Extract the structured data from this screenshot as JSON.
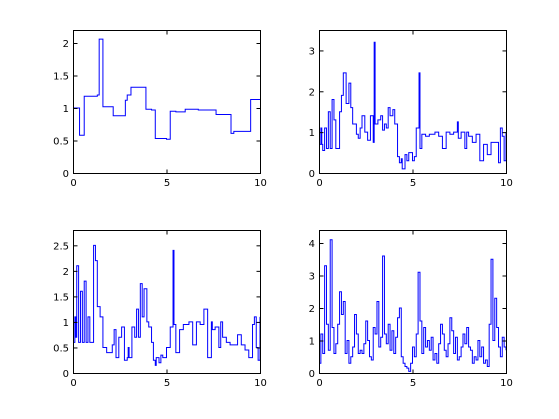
{
  "chart_data": [
    {
      "type": "line",
      "style": "step",
      "title": "",
      "xlabel": "",
      "ylabel": "",
      "xlim": [
        0,
        10
      ],
      "ylim": [
        0,
        2.2
      ],
      "xticks": [
        0,
        5,
        10
      ],
      "yticks": [
        0,
        0.5,
        1,
        1.5,
        2
      ],
      "xtick_labels": [
        "0",
        "5",
        "10"
      ],
      "ytick_labels": [
        "0",
        "0.5",
        "1",
        "1.5",
        "2"
      ],
      "grid": false,
      "color": "#0000ff",
      "x": [
        0,
        0.35,
        0.6,
        1.3,
        1.4,
        1.6,
        2.15,
        2.8,
        2.9,
        3.1,
        3.3,
        3.9,
        4.2,
        4.4,
        5.0,
        5.2,
        5.5,
        6.0,
        6.7,
        7.3,
        7.65,
        8.45,
        8.6,
        9.35,
        9.5,
        10.0
      ],
      "y": [
        1.0,
        0.58,
        1.18,
        1.2,
        2.06,
        1.02,
        0.88,
        1.12,
        1.2,
        1.32,
        1.32,
        0.98,
        0.97,
        0.53,
        0.52,
        0.95,
        0.94,
        0.98,
        0.97,
        0.97,
        0.9,
        0.61,
        0.64,
        0.64,
        1.13,
        1.13
      ]
    },
    {
      "type": "line",
      "style": "step",
      "title": "",
      "xlabel": "",
      "ylabel": "",
      "xlim": [
        0,
        10
      ],
      "ylim": [
        0,
        3.5
      ],
      "xticks": [
        0,
        5,
        10
      ],
      "yticks": [
        0,
        1,
        2,
        3
      ],
      "xtick_labels": [
        "0",
        "5",
        "10"
      ],
      "ytick_labels": [
        "0",
        "1",
        "2",
        "3"
      ],
      "grid": false,
      "color": "#0000ff",
      "x": [
        0,
        0.1,
        0.15,
        0.2,
        0.3,
        0.4,
        0.5,
        0.6,
        0.7,
        0.8,
        0.9,
        1.1,
        1.2,
        1.3,
        1.45,
        1.6,
        1.7,
        1.8,
        2.0,
        2.1,
        2.2,
        2.3,
        2.45,
        2.6,
        2.75,
        2.9,
        2.95,
        3.0,
        3.15,
        3.3,
        3.4,
        3.5,
        3.6,
        3.7,
        3.8,
        3.95,
        4.05,
        4.2,
        4.3,
        4.4,
        4.45,
        4.6,
        4.7,
        4.8,
        5.0,
        5.1,
        5.2,
        5.35,
        5.4,
        5.5,
        5.7,
        5.9,
        6.2,
        6.4,
        6.6,
        6.8,
        7.0,
        7.2,
        7.4,
        7.45,
        7.6,
        7.8,
        7.9,
        8.0,
        8.2,
        8.4,
        8.6,
        8.8,
        9.0,
        9.2,
        9.4,
        9.6,
        9.7,
        9.8,
        9.9,
        10.0
      ],
      "y": [
        0.7,
        1.1,
        0.7,
        0.55,
        1.1,
        0.6,
        1.5,
        0.6,
        1.8,
        1.3,
        0.6,
        1.5,
        1.9,
        2.45,
        1.7,
        2.2,
        1.6,
        1.2,
        0.95,
        0.85,
        1.1,
        1.4,
        1.0,
        0.8,
        1.4,
        0.75,
        3.2,
        1.2,
        1.3,
        1.4,
        1.05,
        1.2,
        1.1,
        1.6,
        1.4,
        1.55,
        1.2,
        0.4,
        0.25,
        0.35,
        0.1,
        0.45,
        0.3,
        0.5,
        0.3,
        0.4,
        1.1,
        2.45,
        0.6,
        0.95,
        0.9,
        0.95,
        1.0,
        0.9,
        0.6,
        1.0,
        0.95,
        1.0,
        1.25,
        0.85,
        1.0,
        0.6,
        1.0,
        0.9,
        0.75,
        0.95,
        0.3,
        0.7,
        0.45,
        0.75,
        0.75,
        0.25,
        1.1,
        0.9,
        0.3,
        1.0
      ]
    },
    {
      "type": "line",
      "style": "step",
      "title": "",
      "xlabel": "",
      "ylabel": "",
      "xlim": [
        0,
        10
      ],
      "ylim": [
        0,
        2.8
      ],
      "xticks": [
        0,
        5,
        10
      ],
      "yticks": [
        0,
        0.5,
        1,
        1.5,
        2,
        2.5
      ],
      "xtick_labels": [
        "0",
        "5",
        "10"
      ],
      "ytick_labels": [
        "0",
        "0.5",
        "1",
        "1.5",
        "2",
        "2.5"
      ],
      "grid": false,
      "color": "#0000ff",
      "x": [
        0,
        0.1,
        0.15,
        0.2,
        0.3,
        0.4,
        0.5,
        0.6,
        0.7,
        0.8,
        0.9,
        1.1,
        1.2,
        1.3,
        1.45,
        1.6,
        1.7,
        1.8,
        2.0,
        2.1,
        2.2,
        2.3,
        2.45,
        2.6,
        2.75,
        2.9,
        2.95,
        3.0,
        3.15,
        3.3,
        3.4,
        3.5,
        3.6,
        3.7,
        3.8,
        3.95,
        4.05,
        4.2,
        4.3,
        4.4,
        4.45,
        4.6,
        4.7,
        4.8,
        5.0,
        5.1,
        5.2,
        5.35,
        5.4,
        5.5,
        5.7,
        5.9,
        6.2,
        6.4,
        6.6,
        6.8,
        7.0,
        7.2,
        7.4,
        7.45,
        7.6,
        7.8,
        7.9,
        8.0,
        8.2,
        8.4,
        8.6,
        8.8,
        9.0,
        9.2,
        9.4,
        9.6,
        9.7,
        9.8,
        9.9,
        10.0
      ],
      "y": [
        0.6,
        1.1,
        0.7,
        2.1,
        0.6,
        1.6,
        0.6,
        1.8,
        0.6,
        1.1,
        0.6,
        2.5,
        2.2,
        1.3,
        1.1,
        0.5,
        0.5,
        0.4,
        0.4,
        0.55,
        0.85,
        0.3,
        0.7,
        0.9,
        0.25,
        0.3,
        0.5,
        0.3,
        0.9,
        0.7,
        1.25,
        0.7,
        1.75,
        1.1,
        1.65,
        1.0,
        0.9,
        0.6,
        0.25,
        0.15,
        0.3,
        0.2,
        0.35,
        0.3,
        0.5,
        0.5,
        0.9,
        2.4,
        0.95,
        0.4,
        0.85,
        0.95,
        1.0,
        0.55,
        1.0,
        0.95,
        1.25,
        0.3,
        1.0,
        0.85,
        0.9,
        0.5,
        1.0,
        0.7,
        0.6,
        0.55,
        0.55,
        0.75,
        0.55,
        0.45,
        0.3,
        0.95,
        1.1,
        0.5,
        0.25,
        1.1
      ]
    },
    {
      "type": "line",
      "style": "step",
      "title": "",
      "xlabel": "",
      "ylabel": "",
      "xlim": [
        0,
        10
      ],
      "ylim": [
        0,
        4.4
      ],
      "xticks": [
        0,
        5,
        10
      ],
      "yticks": [
        0,
        1,
        2,
        3,
        4
      ],
      "xtick_labels": [
        "0",
        "5",
        "10"
      ],
      "ytick_labels": [
        "0",
        "1",
        "2",
        "3",
        "4"
      ],
      "grid": false,
      "color": "#0000ff",
      "x": [
        0,
        0.1,
        0.2,
        0.3,
        0.4,
        0.5,
        0.6,
        0.7,
        0.8,
        0.9,
        1.0,
        1.1,
        1.2,
        1.3,
        1.4,
        1.5,
        1.6,
        1.7,
        1.8,
        1.9,
        2.0,
        2.1,
        2.2,
        2.3,
        2.4,
        2.5,
        2.6,
        2.7,
        2.8,
        2.9,
        3.0,
        3.1,
        3.2,
        3.3,
        3.4,
        3.5,
        3.6,
        3.7,
        3.8,
        3.9,
        4.0,
        4.1,
        4.2,
        4.3,
        4.4,
        4.5,
        4.6,
        4.7,
        4.8,
        4.9,
        5.0,
        5.1,
        5.2,
        5.3,
        5.4,
        5.5,
        5.6,
        5.7,
        5.8,
        5.9,
        6.0,
        6.1,
        6.2,
        6.3,
        6.4,
        6.5,
        6.6,
        6.7,
        6.8,
        6.9,
        7.0,
        7.1,
        7.2,
        7.3,
        7.4,
        7.5,
        7.6,
        7.7,
        7.8,
        7.9,
        8.0,
        8.1,
        8.2,
        8.3,
        8.4,
        8.5,
        8.6,
        8.7,
        8.8,
        8.9,
        9.0,
        9.1,
        9.2,
        9.3,
        9.4,
        9.5,
        9.6,
        9.7,
        9.8,
        9.9,
        10.0
      ],
      "y": [
        0.3,
        1.2,
        0.6,
        3.3,
        1.5,
        0.7,
        4.1,
        1.4,
        0.6,
        0.9,
        1.5,
        2.5,
        1.8,
        2.2,
        0.6,
        1.0,
        0.3,
        0.5,
        0.8,
        1.8,
        1.2,
        0.6,
        0.7,
        0.6,
        0.9,
        1.6,
        1.0,
        0.5,
        0.4,
        1.4,
        1.2,
        2.2,
        0.8,
        1.1,
        3.6,
        1.2,
        0.9,
        1.5,
        0.7,
        1.3,
        0.6,
        1.1,
        1.7,
        2.0,
        0.5,
        0.3,
        0.2,
        0.15,
        0.05,
        0.3,
        0.8,
        0.5,
        1.2,
        3.1,
        1.6,
        0.6,
        1.4,
        0.8,
        1.0,
        0.7,
        1.1,
        0.4,
        0.6,
        0.3,
        0.9,
        1.5,
        1.2,
        0.7,
        0.5,
        0.9,
        1.7,
        1.3,
        0.6,
        1.1,
        0.4,
        0.5,
        0.8,
        1.2,
        0.9,
        1.4,
        0.8,
        0.7,
        0.3,
        0.5,
        0.4,
        1.0,
        0.5,
        0.8,
        0.3,
        0.4,
        0.2,
        1.5,
        3.5,
        1.0,
        2.3,
        1.4,
        0.8,
        0.5,
        1.1,
        0.8,
        0.7
      ]
    }
  ]
}
